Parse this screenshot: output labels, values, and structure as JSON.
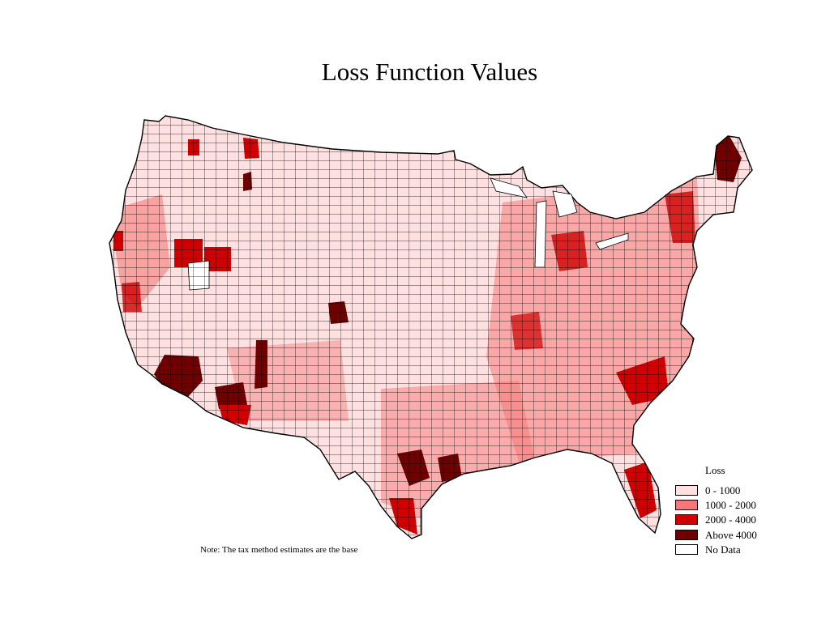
{
  "title": "Loss Function Values",
  "note": "Note: The tax method estimates are the base",
  "legend": {
    "title": "Loss",
    "items": [
      {
        "label": "0 - 1000",
        "color": "#ffe0e0"
      },
      {
        "label": "1000 - 2000",
        "color": "#f57878"
      },
      {
        "label": "2000 - 4000",
        "color": "#d00000"
      },
      {
        "label": "Above 4000",
        "color": "#6e0000"
      },
      {
        "label": "No Data",
        "color": "#ffffff"
      }
    ]
  }
}
